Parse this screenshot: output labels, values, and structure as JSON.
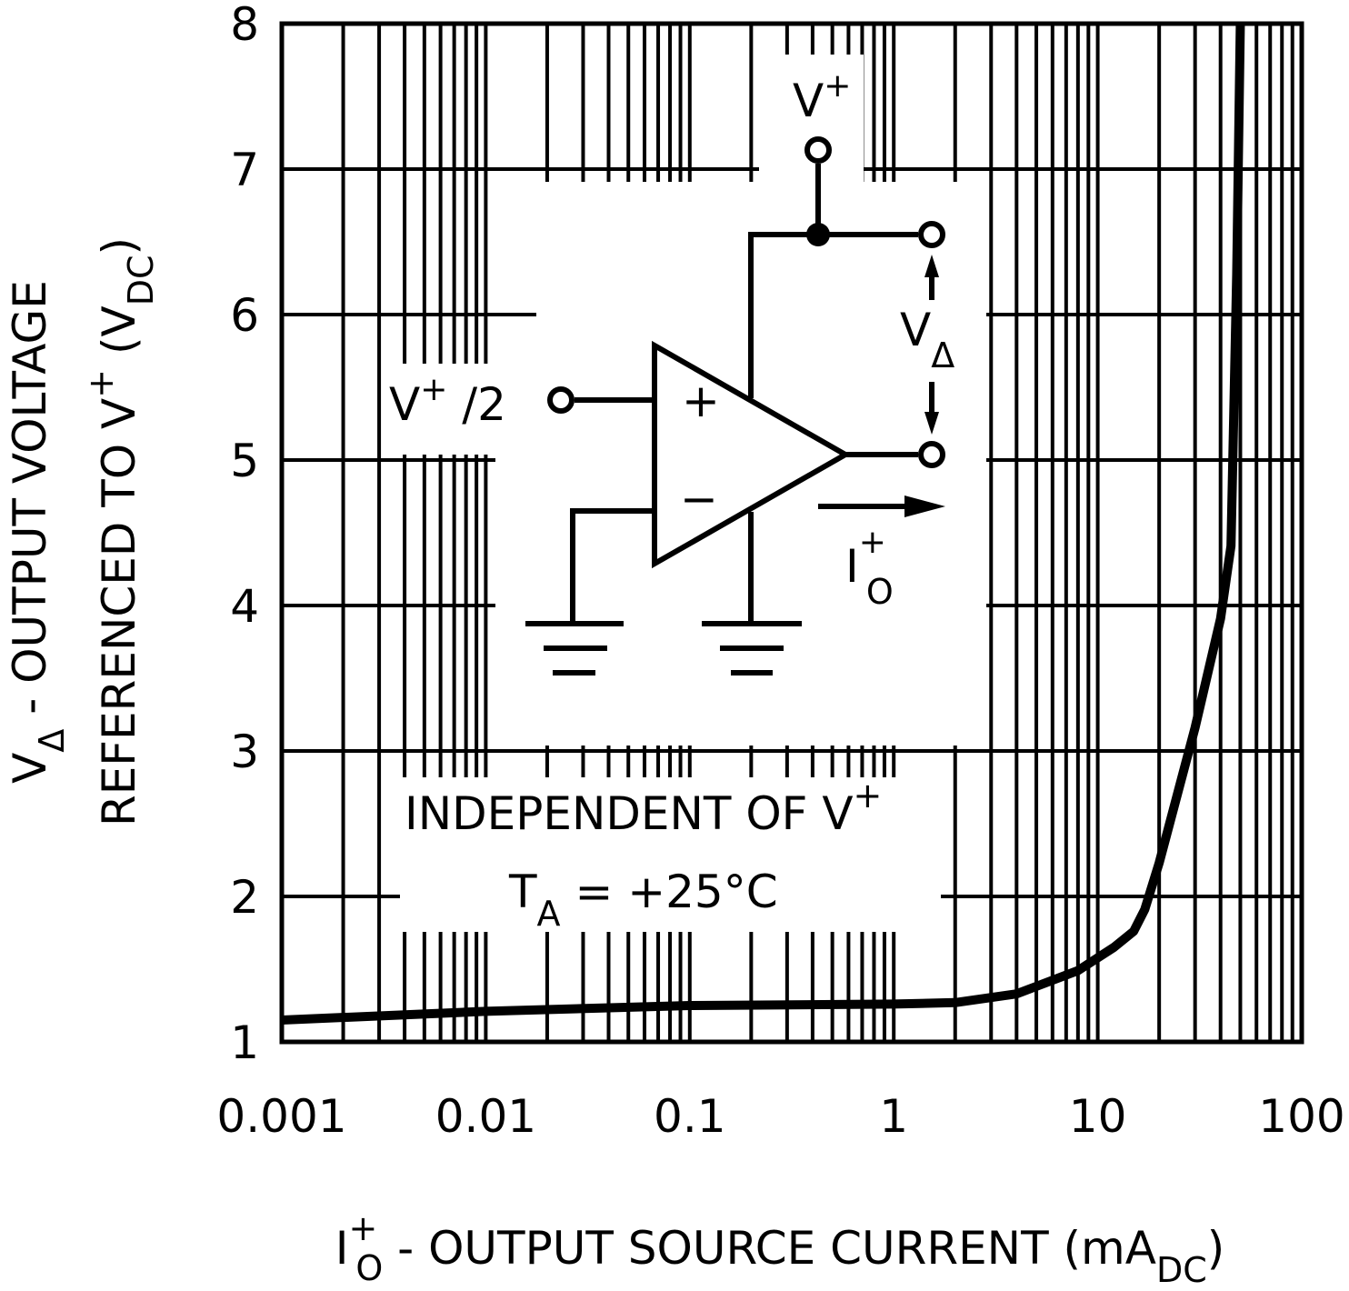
{
  "chart_data": {
    "type": "line",
    "x": [
      0.001,
      0.01,
      0.1,
      1,
      2,
      4,
      8,
      12,
      15,
      17,
      20,
      30,
      40,
      45,
      48,
      50
    ],
    "series": [
      {
        "color": "#000000",
        "values": [
          1.15,
          1.21,
          1.25,
          1.26,
          1.27,
          1.33,
          1.49,
          1.65,
          1.76,
          1.91,
          2.23,
          3.16,
          3.91,
          4.41,
          6.28,
          8
        ]
      }
    ],
    "xscale": "log",
    "xlim": [
      0.001,
      100
    ],
    "xticks": [
      0.001,
      0.01,
      0.1,
      1,
      10,
      100
    ],
    "ylim": [
      1,
      8
    ],
    "yticks": [
      1,
      2,
      3,
      4,
      5,
      6,
      7,
      8
    ],
    "grid": true,
    "xlabel": [
      "I",
      "+",
      "O",
      " - OUTPUT SOURCE CURRENT (mA",
      "DC",
      ")"
    ],
    "ylabel": [
      [
        "V",
        "Δ",
        " - OUTPUT VOLTAGE"
      ],
      [
        "REFERENCED TO V",
        "+",
        " (V",
        "DC",
        ")"
      ]
    ],
    "annotations": {
      "note": [
        "INDEPENDENT OF V",
        "+"
      ],
      "temp": [
        "T",
        "A",
        " = +25°C"
      ],
      "supply": [
        "V",
        "+"
      ],
      "input": [
        "V",
        "+",
        " /2"
      ],
      "plus": "+",
      "minus": "−",
      "vdelta": [
        "V",
        "Δ"
      ],
      "current": [
        "I",
        "+",
        "O"
      ]
    }
  }
}
